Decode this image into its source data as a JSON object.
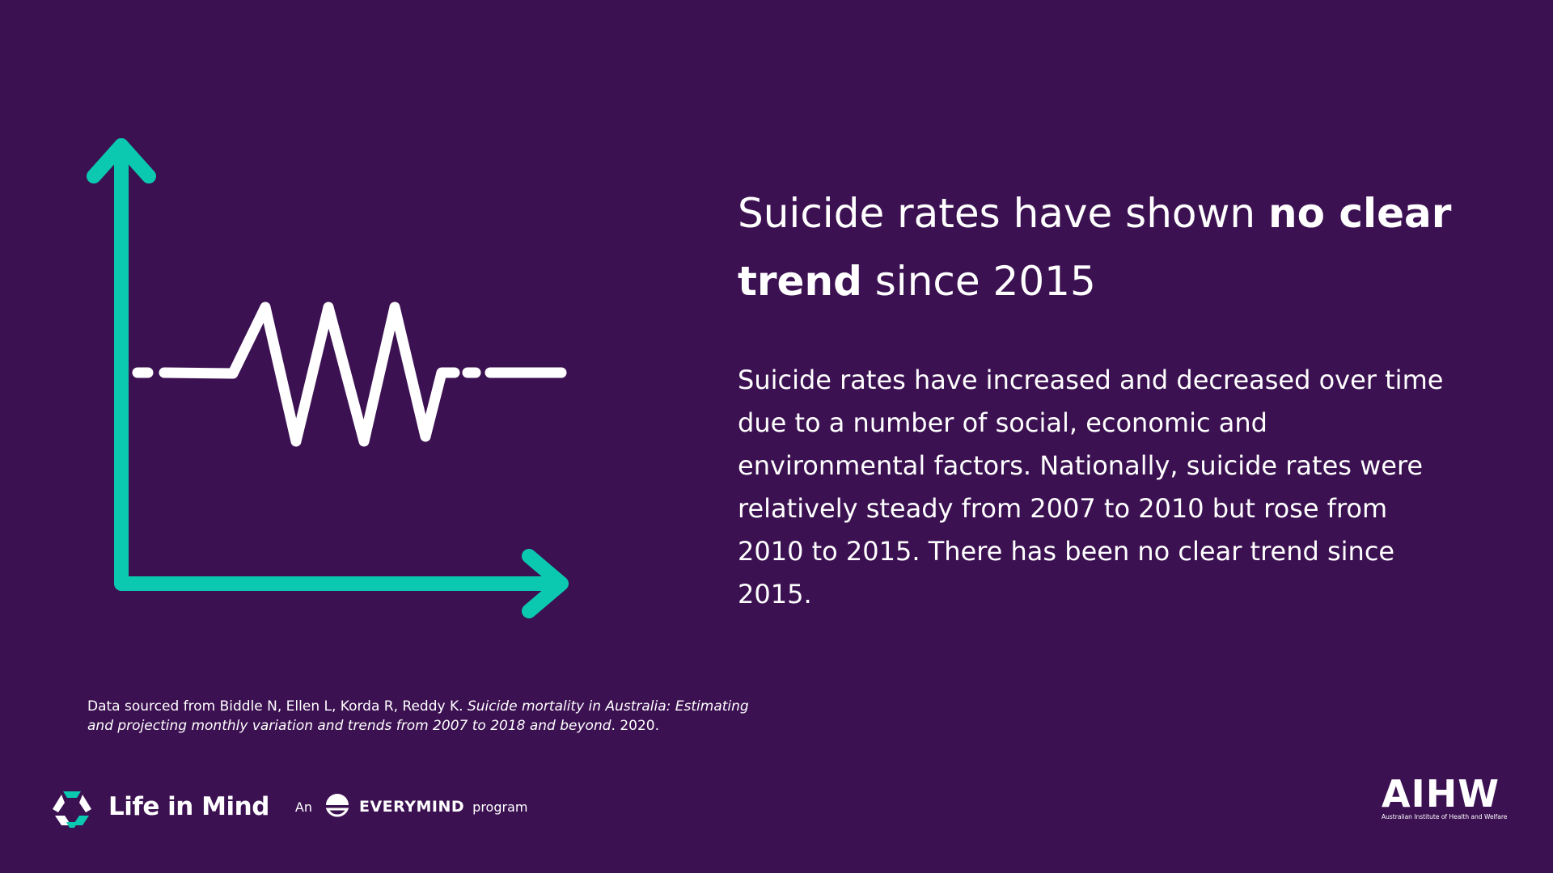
{
  "headline": {
    "part1": "Suicide rates have shown ",
    "bold1": "no clear trend",
    "part2": " since 2015"
  },
  "body": "Suicide rates have increased and decreased over time due to a number of social, economic and environmental factors. Nationally, suicide rates were relatively steady from 2007 to 2010 but rose from 2010 to 2015. There has been no clear trend since 2015.",
  "source": {
    "prefix": "Data sourced from Biddle N, Ellen L, Korda R, Reddy K. ",
    "title": "Suicide mortality in Australia: Estimating and projecting monthly variation and trends from 2007 to 2018 and beyond",
    "suffix": ". 2020."
  },
  "footer": {
    "brand": "Life in Mind",
    "an": "An",
    "partner": "EVERYMIND",
    "program": "program",
    "aihw_mark": "AIHW",
    "aihw_full": "Australian Institute of Health and Welfare"
  },
  "colors": {
    "background": "#3c1152",
    "accent": "#0bc9b0",
    "text": "#ffffff"
  },
  "icons": {
    "illustration": "trend-axes-zigzag-icon",
    "brand_logo": "life-in-mind-logo-icon",
    "partner_logo": "everymind-logo-icon"
  }
}
